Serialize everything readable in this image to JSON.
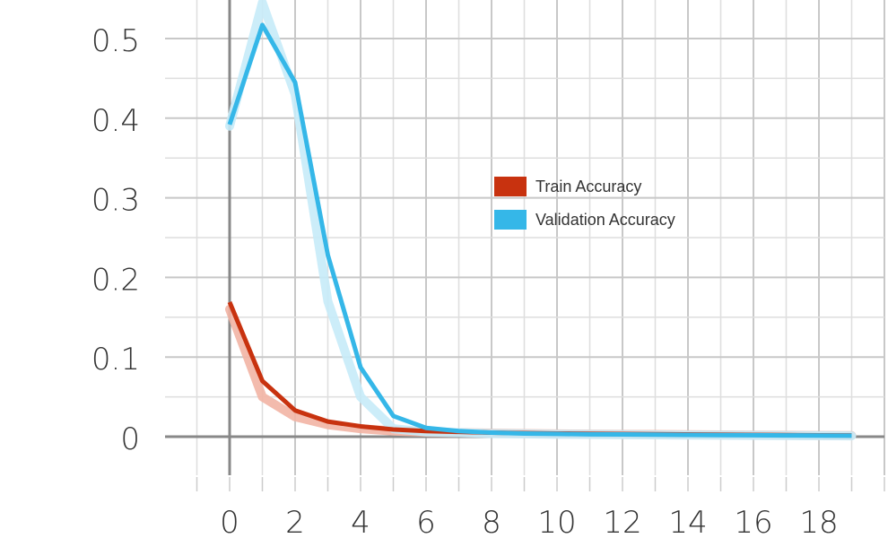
{
  "chart_data": {
    "type": "line",
    "title": "",
    "xlabel": "",
    "ylabel": "",
    "xlim": [
      -1,
      20
    ],
    "ylim": [
      -0.05,
      0.55
    ],
    "x_ticks": [
      0,
      2,
      4,
      6,
      8,
      10,
      12,
      14,
      16,
      18
    ],
    "y_ticks": [
      0,
      0.1,
      0.2,
      0.3,
      0.4,
      0.5
    ],
    "y_tick_labels": [
      "0",
      "0.1",
      "0.2",
      "0.3",
      "0.4",
      "0.5"
    ],
    "grid": true,
    "legend_position": "center-right",
    "x": [
      0,
      1,
      2,
      3,
      4,
      5,
      6,
      7,
      8,
      9,
      10,
      11,
      12,
      13,
      14,
      15,
      16,
      17,
      18,
      19
    ],
    "series": [
      {
        "name": "Train Accuracy",
        "color": "#c8320f",
        "band_color": "#f2b4a4",
        "values": [
          0.169,
          0.07,
          0.033,
          0.019,
          0.013,
          0.009,
          0.007,
          0.006,
          0.005,
          0.0045,
          0.004,
          0.0037,
          0.0034,
          0.0031,
          0.0028,
          0.0025,
          0.0022,
          0.002,
          0.0017,
          0.0015
        ],
        "band_values": [
          0.16,
          0.05,
          0.025,
          0.015,
          0.01,
          0.007,
          0.0055,
          0.005,
          0.0045,
          0.004,
          0.0035,
          0.0032,
          0.003,
          0.0028,
          0.0025,
          0.0022,
          0.002,
          0.0018,
          0.0016,
          0.0014
        ]
      },
      {
        "name": "Validation Accuracy",
        "color": "#35b7e8",
        "band_color": "#c7ebf8",
        "values": [
          0.392,
          0.517,
          0.445,
          0.228,
          0.087,
          0.026,
          0.011,
          0.007,
          0.005,
          0.004,
          0.0035,
          0.003,
          0.0028,
          0.0025,
          0.0022,
          0.002,
          0.0018,
          0.0016,
          0.0014,
          0.0012
        ],
        "band_values": [
          0.39,
          0.545,
          0.43,
          0.17,
          0.05,
          0.01,
          0.006,
          0.005,
          0.004,
          0.0035,
          0.003,
          0.0028,
          0.0025,
          0.0022,
          0.002,
          0.0018,
          0.0016,
          0.0014,
          0.0012,
          0.001
        ]
      }
    ]
  }
}
